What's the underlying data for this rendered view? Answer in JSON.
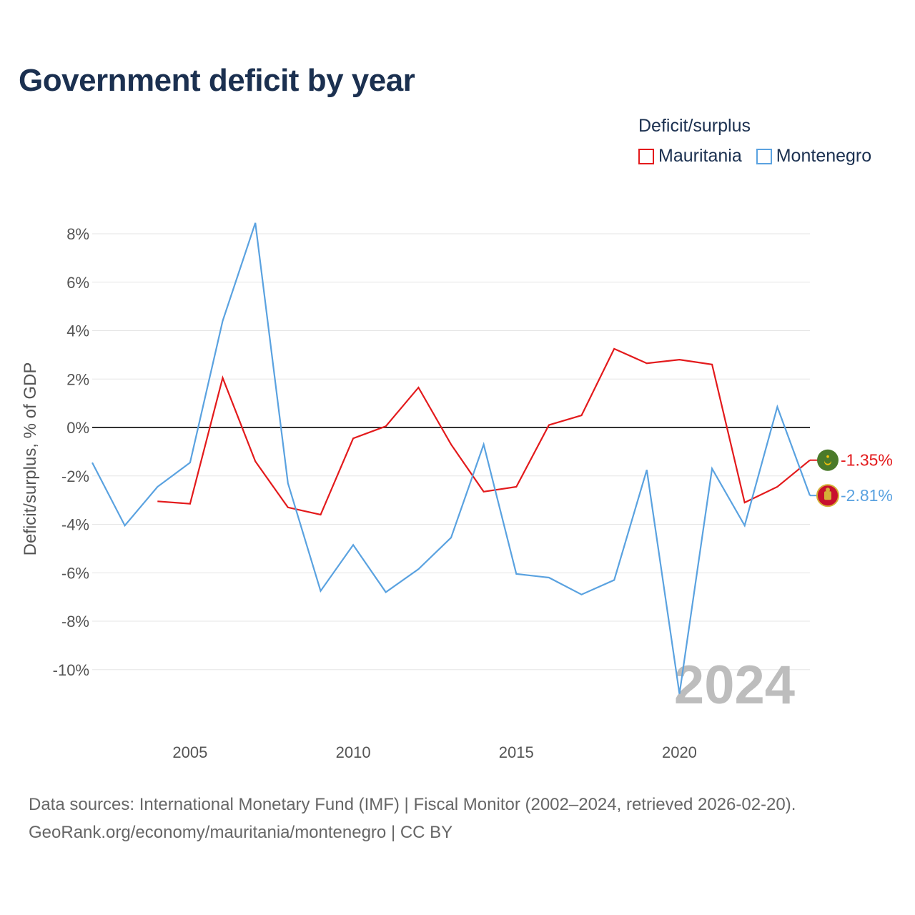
{
  "title": "Government deficit by year",
  "legend": {
    "title": "Deficit/surplus",
    "items": [
      {
        "name": "Mauritania",
        "color": "#e31a1c"
      },
      {
        "name": "Montenegro",
        "color": "#5aa2e0"
      }
    ]
  },
  "chart_data": {
    "type": "line",
    "title": "Government deficit by year",
    "xlabel": "",
    "ylabel": "Deficit/surplus, % of GDP",
    "xlim": [
      2002,
      2024
    ],
    "ylim": [
      -12,
      9
    ],
    "x_ticks": [
      2005,
      2010,
      2015,
      2020
    ],
    "y_ticks": [
      -10,
      -8,
      -6,
      -4,
      -2,
      0,
      2,
      4,
      6,
      8
    ],
    "y_tick_labels": [
      "-10%",
      "-8%",
      "-6%",
      "-4%",
      "-2%",
      "0%",
      "2%",
      "4%",
      "6%",
      "8%"
    ],
    "x_tick_labels": [
      "2005",
      "2010",
      "2015",
      "2020"
    ],
    "grid": true,
    "zero_line": true,
    "current_year": "2024",
    "series": [
      {
        "name": "Mauritania",
        "color": "#e31a1c",
        "x": [
          2004,
          2005,
          2006,
          2007,
          2008,
          2009,
          2010,
          2011,
          2012,
          2013,
          2014,
          2015,
          2016,
          2017,
          2018,
          2019,
          2020,
          2021,
          2022,
          2023,
          2024
        ],
        "values": [
          -3.05,
          -3.15,
          2.05,
          -1.4,
          -3.3,
          -3.6,
          -0.45,
          0.05,
          1.65,
          -0.7,
          -2.65,
          -2.45,
          0.1,
          0.5,
          3.25,
          2.65,
          2.8,
          2.6,
          -3.1,
          -2.45,
          -1.35
        ],
        "end_label": "-1.35%",
        "flag": "mauritania-flag"
      },
      {
        "name": "Montenegro",
        "color": "#5aa2e0",
        "x": [
          2002,
          2003,
          2004,
          2005,
          2006,
          2007,
          2008,
          2009,
          2010,
          2011,
          2012,
          2013,
          2014,
          2015,
          2016,
          2017,
          2018,
          2019,
          2020,
          2021,
          2022,
          2023,
          2024
        ],
        "values": [
          -1.45,
          -4.05,
          -2.45,
          -1.45,
          4.4,
          8.45,
          -2.3,
          -6.75,
          -4.85,
          -6.8,
          -5.85,
          -4.55,
          -0.7,
          -6.05,
          -6.2,
          -6.9,
          -6.3,
          -1.75,
          -11.0,
          -1.7,
          -4.05,
          0.85,
          -2.81
        ],
        "end_label": "-2.81%",
        "flag": "montenegro-flag"
      }
    ]
  },
  "footer": {
    "line1": "Data sources: International Monetary Fund (IMF) | Fiscal Monitor (2002–2024, retrieved 2026-02-20).",
    "line2": "GeoRank.org/economy/mauritania/montenegro | CC BY"
  }
}
